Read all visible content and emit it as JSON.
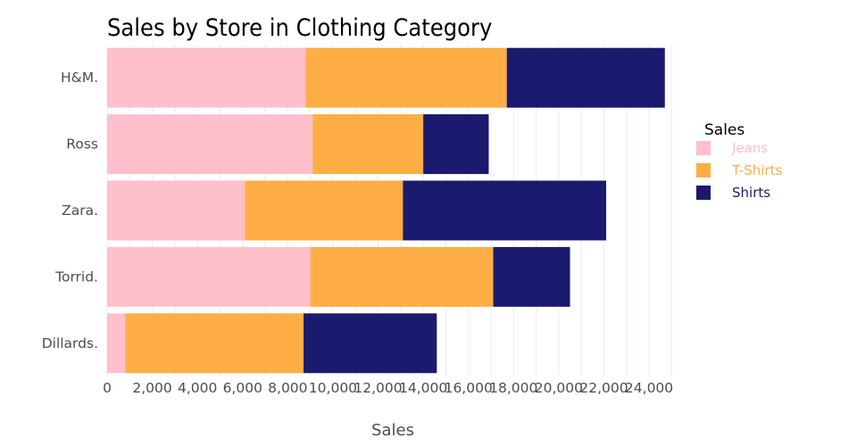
{
  "chart_data": {
    "type": "bar",
    "orientation": "horizontal",
    "stacked": true,
    "title": "Sales by Store in Clothing Category",
    "xlabel": "Sales",
    "ylabel": "",
    "xlim": [
      0,
      25500
    ],
    "xticks": [
      0,
      2000,
      4000,
      6000,
      8000,
      10000,
      12000,
      14000,
      16000,
      18000,
      20000,
      22000,
      24000
    ],
    "xtick_labels": [
      "0",
      "2,000",
      "4,000",
      "6,000",
      "8,000",
      "10,000",
      "12,000",
      "14,000",
      "16,000",
      "18,000",
      "20,000",
      "22,000",
      "24,000"
    ],
    "grid": true,
    "categories": [
      "H&M.",
      "Ross",
      "Zara.",
      "Torrid.",
      "Dillards."
    ],
    "series": [
      {
        "name": "Jeans",
        "color": "#FFC0CB",
        "values": [
          8800,
          9100,
          6100,
          9000,
          800
        ]
      },
      {
        "name": "T-Shirts",
        "color": "#FFAD45",
        "values": [
          8900,
          4900,
          7000,
          8100,
          7900
        ]
      },
      {
        "name": "Shirts",
        "color": "#1A1A6E",
        "values": [
          7000,
          2900,
          9000,
          3400,
          5900
        ]
      }
    ],
    "legend": {
      "title": "Sales",
      "position": "right"
    }
  }
}
